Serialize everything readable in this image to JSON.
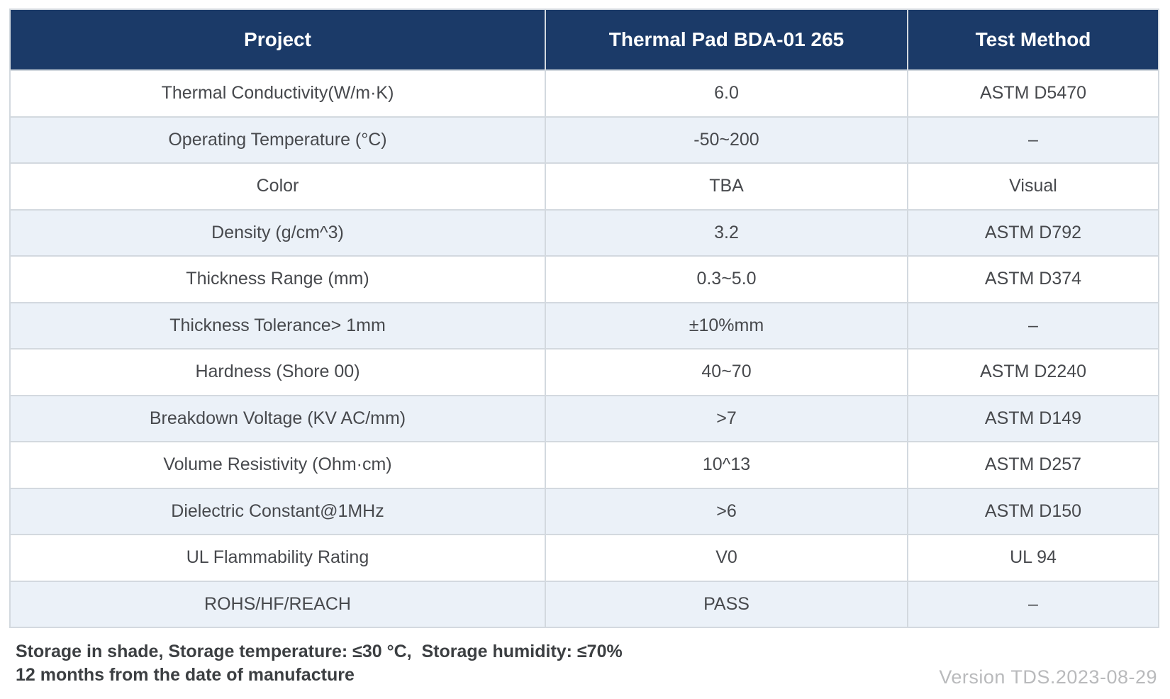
{
  "table": {
    "columns": [
      {
        "label": "Project"
      },
      {
        "label": "Thermal Pad BDA-01 265"
      },
      {
        "label": "Test Method"
      }
    ],
    "rows": [
      [
        "Thermal Conductivity(W/m·K)",
        "6.0",
        "ASTM D5470"
      ],
      [
        "Operating Temperature (°C)",
        "-50~200",
        "–"
      ],
      [
        "Color",
        "TBA",
        "Visual"
      ],
      [
        "Density (g/cm^3)",
        "3.2",
        "ASTM D792"
      ],
      [
        "Thickness Range (mm)",
        "0.3~5.0",
        "ASTM D374"
      ],
      [
        "Thickness Tolerance> 1mm",
        "±10%mm",
        "–"
      ],
      [
        "Hardness (Shore 00)",
        "40~70",
        "ASTM D2240"
      ],
      [
        "Breakdown Voltage (KV AC/mm)",
        ">7",
        "ASTM D149"
      ],
      [
        "Volume Resistivity (Ohm·cm)",
        "10^13",
        "ASTM D257"
      ],
      [
        "Dielectric Constant@1MHz",
        ">6",
        "ASTM D150"
      ],
      [
        "UL Flammability Rating",
        "V0",
        "UL 94"
      ],
      [
        "ROHS/HF/REACH",
        "PASS",
        "–"
      ]
    ]
  },
  "footer": {
    "storage_note": "Storage in shade, Storage temperature: ≤30 °C,  Storage humidity: ≤70%\n12 months from the date of manufacture",
    "version": "Version TDS.2023-08-29"
  },
  "colors": {
    "header_bg": "#1b3a68",
    "stripe_bg": "#ebf1f8",
    "border": "#d3d9df",
    "header_text": "#ffffff",
    "cell_text": "#47494d",
    "footer_text": "#3c3f42",
    "version_text": "#b9babc",
    "page_bg": "#ffffff"
  }
}
